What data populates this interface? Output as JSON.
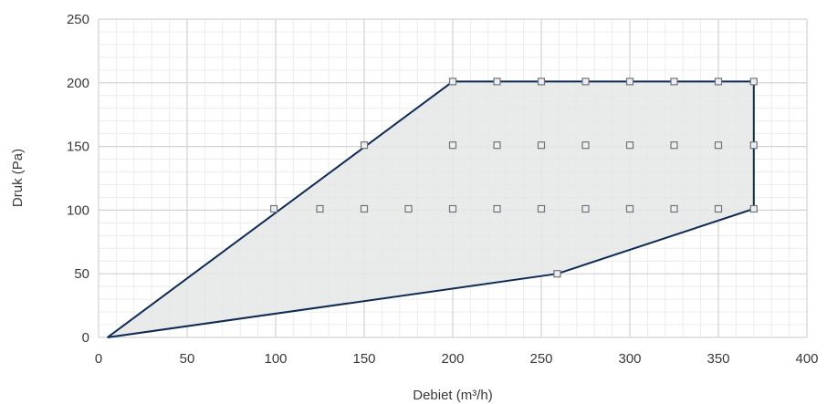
{
  "chart_data": {
    "type": "area",
    "xlabel": "Debiet (m³/h)",
    "ylabel": "Druk (Pa)",
    "xlim": [
      0,
      400
    ],
    "ylim": [
      0,
      250
    ],
    "x_ticks": [
      0,
      50,
      100,
      150,
      200,
      250,
      300,
      350,
      400
    ],
    "y_ticks": [
      0,
      50,
      100,
      150,
      200,
      250
    ],
    "x_tick_labels": [
      "0",
      "50",
      "100",
      "150",
      "200",
      "250",
      "300",
      "350",
      "400"
    ],
    "y_tick_labels": [
      "0",
      "50",
      "100",
      "150",
      "200",
      "250"
    ],
    "minor_x_step": 10,
    "minor_y_step": 10,
    "grid": true,
    "envelope": [
      {
        "x": 5,
        "y": 0
      },
      {
        "x": 200,
        "y": 201
      },
      {
        "x": 370,
        "y": 201
      },
      {
        "x": 370,
        "y": 101
      },
      {
        "x": 259,
        "y": 50
      },
      {
        "x": 5,
        "y": 0
      }
    ],
    "points": [
      {
        "x": 200,
        "y": 201
      },
      {
        "x": 225,
        "y": 201
      },
      {
        "x": 250,
        "y": 201
      },
      {
        "x": 275,
        "y": 201
      },
      {
        "x": 300,
        "y": 201
      },
      {
        "x": 325,
        "y": 201
      },
      {
        "x": 350,
        "y": 201
      },
      {
        "x": 370,
        "y": 201
      },
      {
        "x": 150,
        "y": 151
      },
      {
        "x": 200,
        "y": 151
      },
      {
        "x": 225,
        "y": 151
      },
      {
        "x": 250,
        "y": 151
      },
      {
        "x": 275,
        "y": 151
      },
      {
        "x": 300,
        "y": 151
      },
      {
        "x": 325,
        "y": 151
      },
      {
        "x": 350,
        "y": 151
      },
      {
        "x": 370,
        "y": 151
      },
      {
        "x": 99,
        "y": 101
      },
      {
        "x": 125,
        "y": 101
      },
      {
        "x": 150,
        "y": 101
      },
      {
        "x": 175,
        "y": 101
      },
      {
        "x": 200,
        "y": 101
      },
      {
        "x": 225,
        "y": 101
      },
      {
        "x": 250,
        "y": 101
      },
      {
        "x": 275,
        "y": 101
      },
      {
        "x": 300,
        "y": 101
      },
      {
        "x": 325,
        "y": 101
      },
      {
        "x": 350,
        "y": 101
      },
      {
        "x": 370,
        "y": 101
      },
      {
        "x": 259,
        "y": 50
      }
    ],
    "colors": {
      "line": "#0f2b55",
      "fill": "#e5e7e8",
      "marker_fill": "#eceeef",
      "marker_stroke": "#6f747a",
      "major_grid": "#d3d3d3",
      "minor_grid": "#ececec",
      "text": "#3a3a3a"
    }
  }
}
